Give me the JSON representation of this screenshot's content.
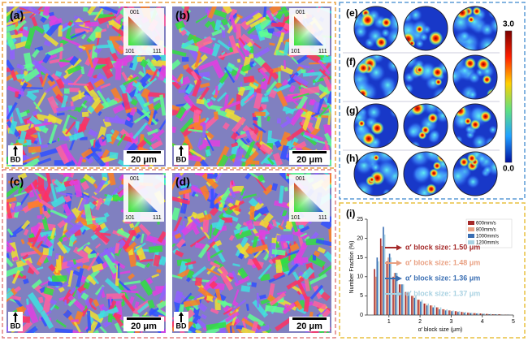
{
  "maps": [
    {
      "label": "(a)",
      "scale_bar": "20 μm",
      "direction": "BD",
      "ipf": {
        "top": "001",
        "left": "101",
        "right": "111"
      }
    },
    {
      "label": "(b)",
      "scale_bar": "20 μm",
      "direction": "BD",
      "ipf": {
        "top": "001",
        "left": "101",
        "right": "111"
      }
    },
    {
      "label": "(c)",
      "scale_bar": "20 μm",
      "direction": "BD",
      "ipf": {
        "top": "001",
        "left": "101",
        "right": "111"
      }
    },
    {
      "label": "(d)",
      "scale_bar": "20 μm",
      "direction": "BD",
      "ipf": {
        "top": "001",
        "left": "101",
        "right": "111"
      }
    }
  ],
  "pole_figures": {
    "rows": [
      "(e)",
      "(f)",
      "(g)",
      "(h)"
    ],
    "colorbar": {
      "max": "3.0",
      "min": "0.0"
    }
  },
  "chart_data": {
    "type": "bar",
    "panel_label": "(i)",
    "x_label": "α′ block size (μm)",
    "y_label": "Number Fraction (%)",
    "x": [
      0.6,
      0.8,
      1.0,
      1.2,
      1.4,
      1.6,
      1.8,
      2.0,
      2.2,
      2.4,
      2.6,
      2.8,
      3.0,
      3.2,
      3.4,
      3.6,
      3.8,
      4.0,
      4.2,
      4.4,
      4.6,
      4.8
    ],
    "series": [
      {
        "name": "600mm/s",
        "color": "#a52a2a",
        "values": [
          12,
          20,
          14,
          10,
          8,
          6,
          5,
          4,
          3,
          2.5,
          2,
          1.5,
          1.2,
          1,
          0.8,
          0.6,
          0.5,
          0.4,
          0.3,
          0.2,
          0.2,
          0.1
        ]
      },
      {
        "name": "800mm/s",
        "color": "#e9a082",
        "values": [
          10,
          18,
          15,
          11,
          8,
          6,
          5,
          4,
          3,
          2.5,
          2,
          1.5,
          1.2,
          1,
          0.8,
          0.6,
          0.5,
          0.4,
          0.3,
          0.2,
          0.2,
          0.1
        ]
      },
      {
        "name": "1000mm/s",
        "color": "#3b6fb3",
        "values": [
          15,
          23,
          16,
          11,
          8,
          6,
          4.5,
          3.5,
          2.5,
          2,
          1.5,
          1.2,
          1,
          0.8,
          0.6,
          0.5,
          0.4,
          0.3,
          0.2,
          0.2,
          0.1,
          0.1
        ]
      },
      {
        "name": "1200mm/s",
        "color": "#a9d2e2",
        "values": [
          14,
          21,
          15,
          11,
          8,
          6,
          5,
          4,
          3,
          2.5,
          2,
          1.5,
          1.2,
          1,
          0.8,
          0.6,
          0.5,
          0.4,
          0.3,
          0.2,
          0.1,
          0.1
        ]
      }
    ],
    "annotations": [
      {
        "text": "α′ block size: 1.50 μm",
        "color": "#a52a2a"
      },
      {
        "text": "α′ block size: 1.48 μm",
        "color": "#e9a082"
      },
      {
        "text": "α′ block size: 1.36 μm",
        "color": "#3b6fb3"
      },
      {
        "text": "α′ block size: 1.37 μm",
        "color": "#a9d2e2"
      }
    ],
    "xlim": [
      0.3,
      5.0
    ],
    "xticks": [
      1,
      2,
      3,
      4,
      5
    ],
    "ylim": [
      0,
      25
    ],
    "yticks": [
      0,
      5,
      10,
      15,
      20,
      25
    ],
    "legend": "upper-right"
  }
}
